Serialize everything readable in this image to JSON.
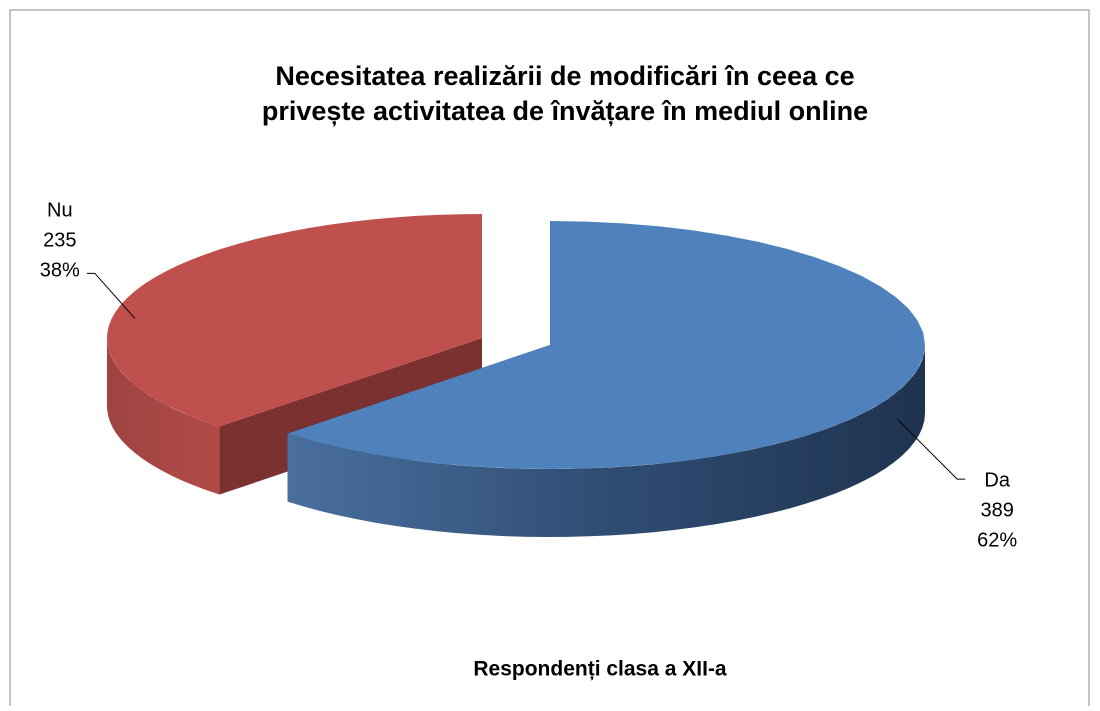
{
  "chart_data": {
    "type": "pie",
    "title": [
      "Necesitatea realizării de modificări în ceea ce",
      "privește activitatea de învățare în mediul online"
    ],
    "subtitle": "Respondenți clasa a XII-a",
    "categories": [
      "Da",
      "Nu"
    ],
    "values": [
      389,
      235
    ],
    "percent_labels": [
      "62%",
      "38%"
    ],
    "colors": [
      "#4f81bd",
      "#c0504d"
    ]
  }
}
